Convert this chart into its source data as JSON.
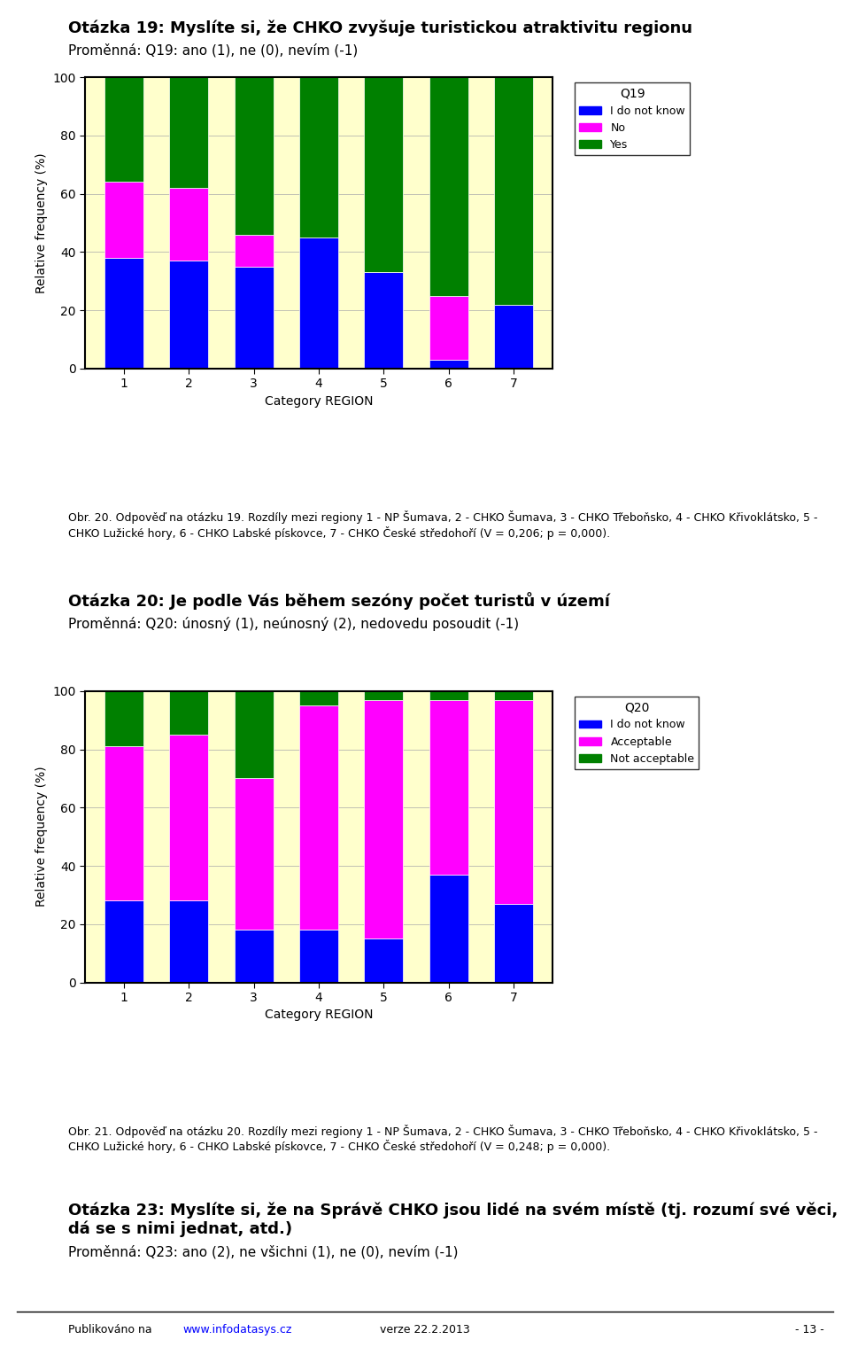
{
  "chart1": {
    "title": "Otázka 19: Myslíte si, že CHKO zvyšuje turistickou atraktivitu regionu",
    "subtitle": "Proměnná: Q19: ano (1), ne (0), nevím (-1)",
    "legend_title": "Q19",
    "legend_labels": [
      "I do not know",
      "No",
      "Yes"
    ],
    "colors": [
      "#0000FF",
      "#FF00FF",
      "#008000"
    ],
    "categories": [
      1,
      2,
      3,
      4,
      5,
      6,
      7
    ],
    "data": {
      "I do not know": [
        38,
        37,
        35,
        45,
        33,
        3,
        22
      ],
      "No": [
        26,
        25,
        11,
        0,
        0,
        22,
        0
      ],
      "Yes": [
        36,
        38,
        54,
        55,
        67,
        75,
        78
      ]
    },
    "ylabel": "Relative frequency (%)",
    "xlabel": "Category REGION",
    "ylim": [
      0,
      100
    ],
    "caption": "Obr. 20. Odpověď na otázku 19. Rozdíly mezi regiony 1 - NP Šumava, 2 - CHKO Šumava, 3 - CHKO Třeboňsko, 4 - CHKO Křivoklátsko, 5 - CHKO Lužické hory, 6 - CHKO Labské pískovce, 7 - CHKO České středohoří (V = 0,206; p = 0,000)."
  },
  "chart2": {
    "title": "Otázka 20: Je podle Vás během sezóny počet turistů v území",
    "subtitle": "Proměnná: Q20: únosný (1), neúnosný (2), nedovedu posoudit (-1)",
    "legend_title": "Q20",
    "legend_labels": [
      "I do not know",
      "Acceptable",
      "Not acceptable"
    ],
    "colors": [
      "#0000FF",
      "#FF00FF",
      "#008000"
    ],
    "categories": [
      1,
      2,
      3,
      4,
      5,
      6,
      7
    ],
    "data": {
      "I do not know": [
        28,
        28,
        18,
        18,
        15,
        37,
        27
      ],
      "Acceptable": [
        53,
        57,
        52,
        77,
        82,
        60,
        70
      ],
      "Not acceptable": [
        19,
        15,
        30,
        5,
        3,
        3,
        3
      ]
    },
    "ylabel": "Relative frequency (%)",
    "xlabel": "Category REGION",
    "ylim": [
      0,
      100
    ],
    "caption": "Obr. 21. Odpověď na otázku 20. Rozdíly mezi regiony 1 - NP Šumava, 2 - CHKO Šumava, 3 - CHKO Třeboňsko, 4 - CHKO Křivoklátsko, 5 - CHKO Lužické hory, 6 - CHKO Labské pískovce, 7 - CHKO České středohoří (V = 0,248; p = 0,000)."
  },
  "footer_prefix": "Publikováno na ",
  "footer_url": "www.infodatasys.cz",
  "footer_middle": "verze 22.2.2013",
  "footer_right": "- 13 -",
  "bottom_title": "Otázka 23: Myslíte si, že na Správě CHKO jsou lidé na svém místě (tj. rozumí své věci,\ndá se s nimi jednat, atd.)",
  "bottom_subtitle": "Proměnná: Q23: ano (2), ne všichni (1), ne (0), nevím (-1)",
  "background_color": "#FFFFFF",
  "bar_width": 0.6,
  "grid_color": "#AAAAAA",
  "axis_bg_color": "#FFFFCC"
}
